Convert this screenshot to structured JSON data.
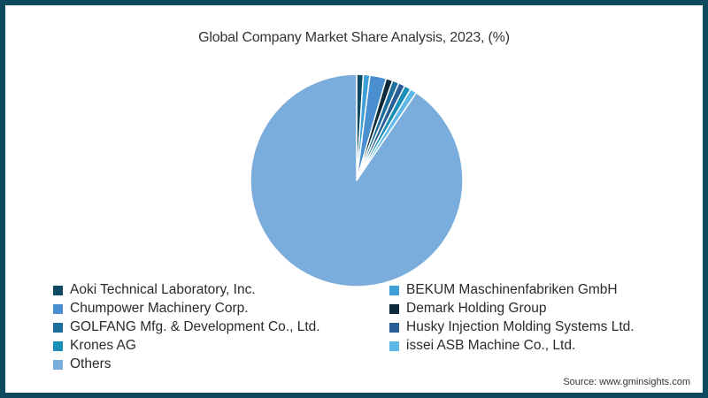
{
  "chart_data": {
    "type": "pie",
    "title": "Global Company Market Share Analysis, 2023, (%)",
    "categories": [
      "Aoki Technical Laboratory, Inc.",
      "BEKUM Maschinenfabriken GmbH",
      "Chumpower Machinery Corp.",
      "Demark Holding Group",
      "GOLFANG Mfg. & Development Co., Ltd.",
      "Husky Injection Molding Systems Ltd.",
      "Krones AG",
      "issei ASB Machine Co., Ltd.",
      "Others"
    ],
    "values": [
      1.0,
      1.0,
      2.5,
      1.0,
      1.0,
      1.0,
      1.0,
      1.0,
      90.5
    ],
    "colors": [
      "#0f4a63",
      "#3fa0d8",
      "#4a8fd0",
      "#0c2a3a",
      "#1d6e9c",
      "#2a5f96",
      "#1a8fb5",
      "#5db8e8",
      "#7aacdc"
    ],
    "legend_position": "bottom",
    "start_angle": "12 o'clock, clockwise"
  },
  "header": {
    "title": "Global Company Market Share Analysis, 2023, (%)"
  },
  "legend": {
    "items": [
      {
        "label": "Aoki Technical Laboratory, Inc.",
        "color": "#0f4a63"
      },
      {
        "label": "BEKUM Maschinenfabriken GmbH",
        "color": "#3fa0d8"
      },
      {
        "label": "Chumpower Machinery Corp.",
        "color": "#4a8fd0"
      },
      {
        "label": "Demark Holding Group",
        "color": "#0c2a3a"
      },
      {
        "label": "GOLFANG Mfg. & Development Co., Ltd.",
        "color": "#1d6e9c"
      },
      {
        "label": "Husky Injection Molding Systems Ltd.",
        "color": "#2a5f96"
      },
      {
        "label": "Krones AG",
        "color": "#1a8fb5"
      },
      {
        "label": "issei ASB Machine Co., Ltd.",
        "color": "#5db8e8"
      },
      {
        "label": "Others",
        "color": "#7aacdc"
      }
    ]
  },
  "footer": {
    "source": "Source: www.gminsights.com"
  },
  "theme": {
    "border": "#0e4a5e",
    "background": "#ffffff"
  }
}
